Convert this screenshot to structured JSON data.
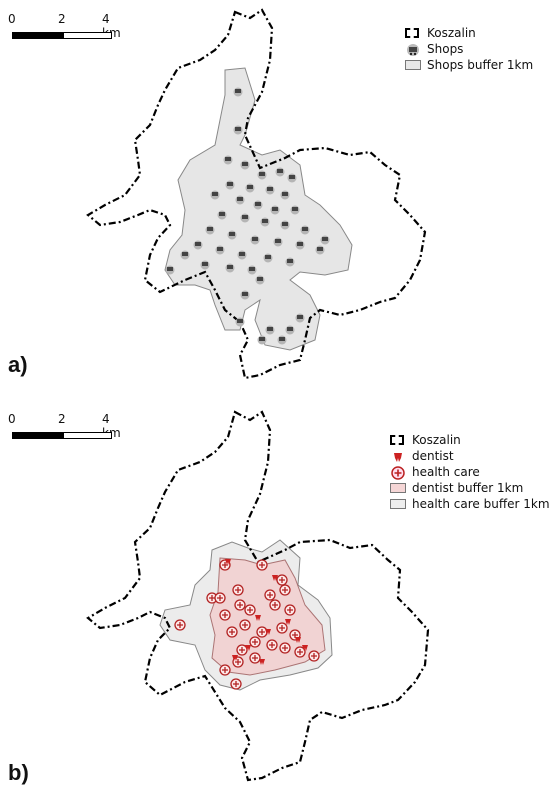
{
  "panels": [
    {
      "label": "a)",
      "scale": {
        "ticks": [
          "0",
          "2",
          "4 km"
        ]
      },
      "legend": [
        {
          "symbol": "boundary",
          "label": "Koszalin"
        },
        {
          "symbol": "shop-icon",
          "label": "Shops"
        },
        {
          "symbol": "buffer",
          "label": "Shops buffer 1km"
        }
      ]
    },
    {
      "label": "b)",
      "scale": {
        "ticks": [
          "0",
          "2",
          "4 km"
        ]
      },
      "legend": [
        {
          "symbol": "boundary",
          "label": "Koszalin"
        },
        {
          "symbol": "dentist-icon",
          "label": "dentist"
        },
        {
          "symbol": "health-care-icon",
          "label": "health care"
        },
        {
          "symbol": "buffer",
          "label": "dentist buffer 1km"
        },
        {
          "symbol": "buffer",
          "label": "health care buffer 1km"
        }
      ]
    }
  ],
  "colors": {
    "boundary": "#000000",
    "shops_buffer_fill": "#e6e6e6",
    "shops_icon": "#555555",
    "dentist_buffer_fill": "#f3cfcf",
    "health_care_buffer_fill": "#ececec",
    "health_care_icon": "#b22222"
  }
}
